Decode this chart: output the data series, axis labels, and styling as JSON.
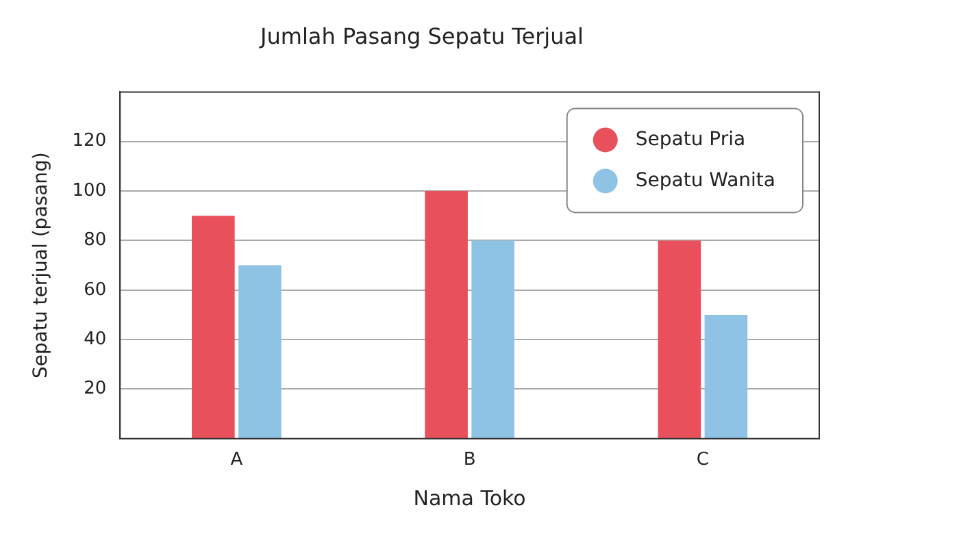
{
  "chart_data": {
    "type": "bar",
    "title": "Jumlah Pasang Sepatu Terjual",
    "xlabel": "Nama Toko",
    "ylabel": "Sepatu terjual (pasang)",
    "categories": [
      "A",
      "B",
      "C"
    ],
    "series": [
      {
        "name": "Sepatu Pria",
        "color": "#e8515b",
        "values": [
          90,
          100,
          80
        ]
      },
      {
        "name": "Sepatu Wanita",
        "color": "#8ec3e6",
        "values": [
          70,
          80,
          50
        ]
      }
    ],
    "ylim": [
      0,
      140
    ],
    "yticks": [
      20,
      40,
      60,
      80,
      100,
      120
    ],
    "grid": "y",
    "legend": "top right"
  }
}
